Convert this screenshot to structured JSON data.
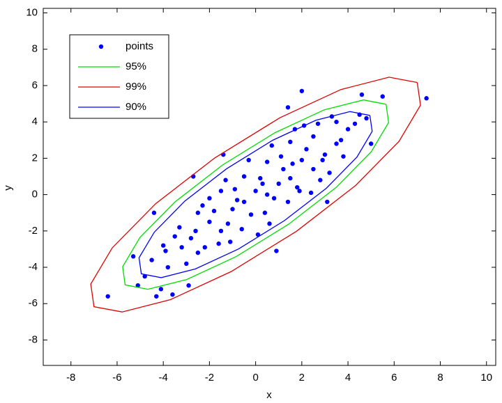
{
  "chart_data": {
    "type": "scatter",
    "xlabel": "x",
    "ylabel": "y",
    "xlim": [
      -9.2,
      10.4
    ],
    "ylim": [
      -9.4,
      10.25
    ],
    "xticks": [
      -8,
      -6,
      -4,
      -2,
      0,
      2,
      4,
      6,
      8,
      10
    ],
    "yticks": [
      -8,
      -6,
      -4,
      -2,
      0,
      2,
      4,
      6,
      8,
      10
    ],
    "grid": false,
    "legend": "upper left",
    "series": [
      {
        "name": "points",
        "mode": "markers",
        "color": "#0000ff",
        "x": [
          7.4,
          -6.4,
          2.0,
          4.6,
          5.5,
          -2.7,
          -4.4,
          -1.4,
          0.9,
          -4.3,
          -3.6,
          -5.1,
          -5.3,
          3.1,
          1.4,
          -2.9,
          4.8,
          5.0,
          -4.1,
          -4.8,
          -3.2,
          -2.0,
          -1.0,
          0.0,
          1.0,
          2.0,
          3.0,
          4.0,
          -3.8,
          -2.5,
          -1.5,
          -0.5,
          0.5,
          1.5,
          2.5,
          3.5,
          -4.5,
          -3.5,
          -2.5,
          -1.5,
          -0.5,
          0.5,
          1.5,
          2.5,
          3.5,
          4.3,
          -4.0,
          -3.0,
          -2.2,
          -1.2,
          -0.2,
          0.8,
          1.8,
          2.8,
          3.8,
          -3.3,
          -2.3,
          -1.3,
          -0.3,
          0.7,
          1.7,
          2.7,
          3.2,
          -2.8,
          -1.8,
          -0.8,
          0.2,
          1.2,
          2.2,
          3.7,
          -1.6,
          -0.6,
          0.4,
          1.4,
          2.4,
          0.1,
          -0.9,
          1.1,
          2.1,
          3.3,
          -2.0,
          -1.1,
          0.3,
          1.6,
          2.9,
          4.5,
          -3.9,
          -2.6,
          0.6,
          1.9
        ],
        "values": [
          5.3,
          -5.6,
          5.7,
          5.5,
          5.4,
          1.0,
          -1.0,
          2.2,
          -3.1,
          -5.6,
          -5.5,
          -5.0,
          -3.4,
          -0.4,
          4.8,
          -5.0,
          4.2,
          2.8,
          -5.2,
          -4.5,
          -2.9,
          -1.5,
          -0.8,
          0.2,
          0.6,
          1.9,
          2.2,
          3.6,
          -4.0,
          -3.2,
          -2.0,
          -0.4,
          0.0,
          0.9,
          1.4,
          2.8,
          -3.6,
          -2.3,
          -1.0,
          0.2,
          1.0,
          1.8,
          2.9,
          3.2,
          4.0,
          3.9,
          -2.8,
          -3.8,
          -2.9,
          -1.6,
          -1.1,
          -0.2,
          0.4,
          0.8,
          2.1,
          -1.8,
          -0.6,
          0.8,
          1.9,
          2.7,
          3.6,
          3.9,
          1.2,
          -2.4,
          -0.9,
          -0.3,
          0.9,
          1.4,
          2.5,
          3.0,
          -2.7,
          -1.9,
          -1.0,
          -0.4,
          0.1,
          -2.2,
          0.3,
          2.1,
          3.8,
          4.3,
          -0.2,
          -2.6,
          0.6,
          1.7,
          1.9,
          4.4,
          -3.1,
          -2.0,
          -1.6,
          0.2
        ]
      },
      {
        "name": "95%",
        "mode": "line",
        "color": "#00dd00",
        "x": [
          5.65,
          4.67,
          2.98,
          0.84,
          -1.43,
          -3.49,
          -5.01,
          -5.76,
          -5.65,
          -4.67,
          -2.98,
          -0.84,
          1.43,
          3.49,
          5.01,
          5.76,
          5.65
        ],
        "values": [
          4.97,
          5.21,
          4.67,
          3.41,
          1.63,
          -0.4,
          -2.36,
          -3.97,
          -4.97,
          -5.21,
          -4.67,
          -3.41,
          -1.63,
          0.4,
          2.36,
          3.97,
          4.97
        ]
      },
      {
        "name": "99%",
        "mode": "line",
        "color": "#e00000",
        "x": [
          7.0,
          5.78,
          3.69,
          1.05,
          -1.77,
          -4.33,
          -6.21,
          -7.14,
          -7.0,
          -5.78,
          -3.69,
          -1.05,
          1.77,
          4.33,
          6.21,
          7.14,
          7.0
        ],
        "values": [
          6.17,
          6.46,
          5.78,
          4.23,
          2.02,
          -0.5,
          -2.93,
          -4.92,
          -6.17,
          -6.46,
          -5.78,
          -4.23,
          -2.02,
          0.5,
          2.93,
          4.92,
          6.17
        ]
      },
      {
        "name": "90%",
        "mode": "line",
        "color": "#0000ff",
        "x": [
          4.95,
          4.09,
          2.61,
          0.74,
          -1.25,
          -3.06,
          -4.39,
          -5.05,
          -4.95,
          -4.09,
          -2.61,
          -0.74,
          1.25,
          3.06,
          4.39,
          5.05,
          4.95
        ],
        "values": [
          4.36,
          4.57,
          4.09,
          2.99,
          1.43,
          -0.35,
          -2.07,
          -3.48,
          -4.36,
          -4.57,
          -4.09,
          -2.99,
          -1.43,
          0.35,
          2.07,
          3.48,
          4.36
        ]
      }
    ]
  }
}
